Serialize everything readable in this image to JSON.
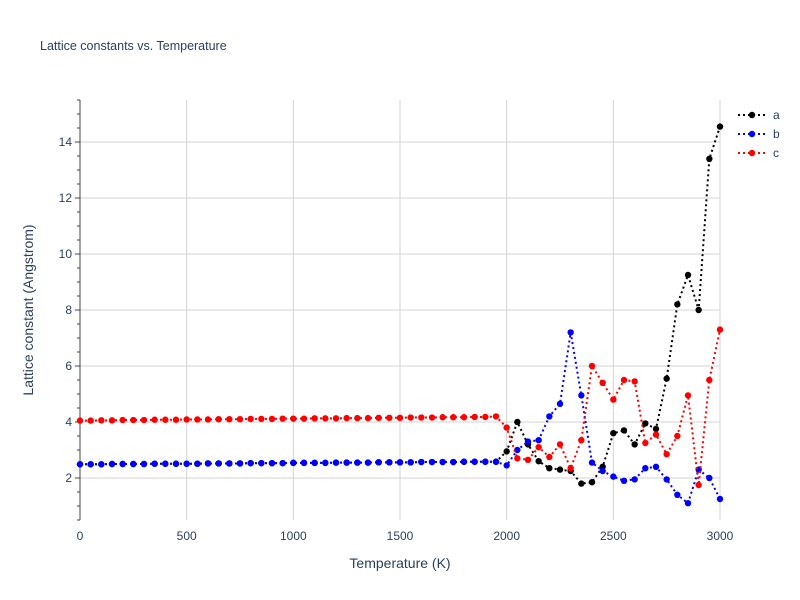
{
  "chart_data": {
    "type": "line",
    "title": "Lattice constants vs. Temperature",
    "xlabel": "Temperature (K)",
    "ylabel": "Lattice constant (Angstrom)",
    "xlim": [
      0,
      3000
    ],
    "ylim": [
      0.5,
      15.5
    ],
    "x_ticks": [
      0,
      500,
      1000,
      1500,
      2000,
      2500,
      3000
    ],
    "x_tick_labels": [
      "0",
      "500",
      "1000",
      "1500",
      "2000",
      "2500",
      "3000"
    ],
    "y_ticks": [
      2,
      4,
      6,
      8,
      10,
      12,
      14
    ],
    "y_tick_labels": [
      "2",
      "4",
      "6",
      "8",
      "10",
      "12",
      "14"
    ],
    "grid": true,
    "legend_position": "top-right",
    "x": [
      0,
      50,
      100,
      150,
      200,
      250,
      300,
      350,
      400,
      450,
      500,
      550,
      600,
      650,
      700,
      750,
      800,
      850,
      900,
      950,
      1000,
      1050,
      1100,
      1150,
      1200,
      1250,
      1300,
      1350,
      1400,
      1450,
      1500,
      1550,
      1600,
      1650,
      1700,
      1750,
      1800,
      1850,
      1900,
      1950,
      2000,
      2050,
      2100,
      2150,
      2200,
      2250,
      2300,
      2350,
      2400,
      2450,
      2500,
      2550,
      2600,
      2650,
      2700,
      2750,
      2800,
      2850,
      2900,
      2950,
      3000
    ],
    "series": [
      {
        "name": "a",
        "color": "#000000",
        "values": [
          2.49,
          2.49,
          2.49,
          2.5,
          2.5,
          2.5,
          2.5,
          2.51,
          2.51,
          2.51,
          2.51,
          2.51,
          2.52,
          2.52,
          2.52,
          2.52,
          2.53,
          2.53,
          2.53,
          2.53,
          2.54,
          2.54,
          2.54,
          2.54,
          2.55,
          2.55,
          2.55,
          2.55,
          2.56,
          2.56,
          2.56,
          2.56,
          2.57,
          2.57,
          2.57,
          2.57,
          2.58,
          2.58,
          2.58,
          2.58,
          2.95,
          4.0,
          3.2,
          2.6,
          2.35,
          2.3,
          2.25,
          1.8,
          1.85,
          2.4,
          3.6,
          3.7,
          3.2,
          3.95,
          3.75,
          5.55,
          8.2,
          9.25,
          8.0,
          13.4,
          14.55
        ]
      },
      {
        "name": "b",
        "color": "#0000ff",
        "values": [
          2.49,
          2.49,
          2.49,
          2.5,
          2.5,
          2.5,
          2.5,
          2.51,
          2.51,
          2.51,
          2.51,
          2.51,
          2.52,
          2.52,
          2.52,
          2.52,
          2.53,
          2.53,
          2.53,
          2.53,
          2.54,
          2.54,
          2.54,
          2.54,
          2.55,
          2.55,
          2.55,
          2.55,
          2.56,
          2.56,
          2.56,
          2.56,
          2.57,
          2.57,
          2.57,
          2.57,
          2.58,
          2.58,
          2.58,
          2.58,
          2.45,
          3.0,
          3.3,
          3.35,
          4.2,
          4.65,
          7.2,
          4.95,
          2.55,
          2.25,
          2.05,
          1.9,
          1.95,
          2.35,
          2.4,
          1.95,
          1.4,
          1.1,
          2.3,
          2.0,
          1.25
        ]
      },
      {
        "name": "c",
        "color": "#ff0000",
        "values": [
          4.05,
          4.05,
          4.06,
          4.06,
          4.07,
          4.07,
          4.07,
          4.08,
          4.08,
          4.08,
          4.09,
          4.09,
          4.09,
          4.1,
          4.1,
          4.1,
          4.11,
          4.11,
          4.11,
          4.12,
          4.12,
          4.12,
          4.13,
          4.13,
          4.13,
          4.14,
          4.14,
          4.14,
          4.15,
          4.15,
          4.15,
          4.16,
          4.16,
          4.16,
          4.17,
          4.17,
          4.17,
          4.18,
          4.18,
          4.2,
          3.8,
          2.7,
          2.65,
          3.1,
          2.75,
          3.2,
          2.35,
          3.35,
          6.0,
          5.4,
          4.8,
          5.5,
          5.45,
          3.25,
          3.55,
          2.85,
          3.5,
          4.95,
          1.75,
          5.5,
          7.3
        ]
      }
    ]
  }
}
